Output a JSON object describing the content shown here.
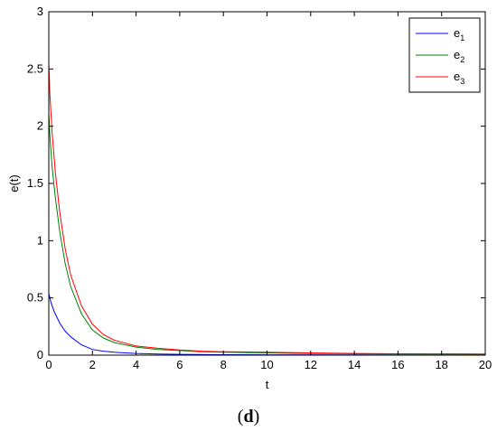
{
  "caption": {
    "open": "(",
    "letter": "d",
    "close": ")"
  },
  "chart_data": {
    "type": "line",
    "title": "",
    "xlabel": "t",
    "ylabel": "e(t)",
    "xlim": [
      0,
      20
    ],
    "ylim": [
      0,
      3
    ],
    "xticks": [
      0,
      2,
      4,
      6,
      8,
      10,
      12,
      14,
      16,
      18,
      20
    ],
    "yticks": [
      0,
      0.5,
      1,
      1.5,
      2,
      2.5,
      3
    ],
    "grid": false,
    "legend_position": "top-right",
    "series": [
      {
        "name": "e1",
        "legend_base": "e",
        "legend_sub": "1",
        "color": "#0000ff",
        "x": [
          0,
          0.1,
          0.25,
          0.5,
          0.75,
          1,
          1.5,
          2,
          2.5,
          3,
          4,
          5,
          6,
          8,
          10,
          14,
          20
        ],
        "y": [
          0.54,
          0.46,
          0.38,
          0.28,
          0.21,
          0.16,
          0.09,
          0.05,
          0.035,
          0.025,
          0.015,
          0.01,
          0.007,
          0.004,
          0.003,
          0.002,
          0.001
        ]
      },
      {
        "name": "e2",
        "legend_base": "e",
        "legend_sub": "2",
        "color": "#008000",
        "x": [
          0,
          0.05,
          0.15,
          0.3,
          0.5,
          0.75,
          1,
          1.5,
          2,
          2.5,
          3,
          4,
          5,
          6,
          7,
          8,
          10,
          12,
          14,
          16,
          20
        ],
        "y": [
          2.12,
          1.92,
          1.65,
          1.38,
          1.08,
          0.8,
          0.6,
          0.36,
          0.22,
          0.15,
          0.11,
          0.07,
          0.05,
          0.04,
          0.03,
          0.025,
          0.02,
          0.015,
          0.012,
          0.01,
          0.008
        ]
      },
      {
        "name": "e3",
        "legend_base": "e",
        "legend_sub": "3",
        "color": "#ff0000",
        "x": [
          0,
          0.05,
          0.15,
          0.3,
          0.5,
          0.75,
          1,
          1.5,
          2,
          2.5,
          3,
          4,
          5,
          6,
          7,
          8,
          10,
          12,
          14,
          16,
          20
        ],
        "y": [
          2.55,
          2.28,
          1.95,
          1.6,
          1.25,
          0.93,
          0.7,
          0.43,
          0.27,
          0.18,
          0.13,
          0.08,
          0.06,
          0.045,
          0.035,
          0.03,
          0.025,
          0.02,
          0.015,
          0.012,
          0.01
        ]
      }
    ]
  }
}
